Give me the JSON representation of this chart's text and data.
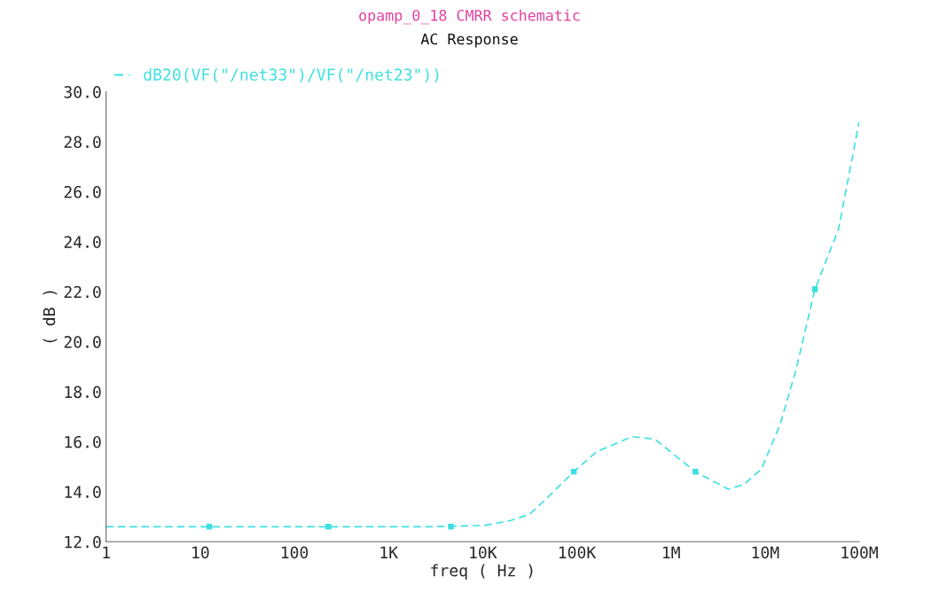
{
  "chart_data": {
    "type": "line",
    "title": "opamp_0_18 CMRR schematic",
    "subtitle": "AC Response",
    "xlabel": "freq ( Hz )",
    "ylabel": "( dB )",
    "log": "x",
    "grid": false,
    "legend": "top left",
    "line_style": "dashed",
    "xlim": [
      1,
      100000000
    ],
    "xticks": [
      1,
      10,
      100,
      {
        "value": 1000,
        "label": "1K"
      },
      {
        "value": 10000,
        "label": "10K"
      },
      {
        "value": 100000,
        "label": "100K"
      },
      {
        "value": 1000000,
        "label": "1M"
      },
      {
        "value": 10000000,
        "label": "10M"
      },
      {
        "value": 100000000,
        "label": "100M"
      }
    ],
    "ylim": [
      12.0,
      30.0
    ],
    "yticks": [
      {
        "value": 12,
        "label": "12.0"
      },
      {
        "value": 14,
        "label": "14.0"
      },
      {
        "value": 16,
        "label": "16.0"
      },
      {
        "value": 18,
        "label": "18.0"
      },
      {
        "value": 20,
        "label": "20.0"
      },
      {
        "value": 22,
        "label": "22.0"
      },
      {
        "value": 24,
        "label": "24.0"
      },
      {
        "value": 26,
        "label": "26.0"
      },
      {
        "value": 28,
        "label": "28.0"
      },
      {
        "value": 30,
        "label": "30.0"
      }
    ],
    "series": [
      {
        "name": "dB20(VF(\"/net33\")/VF(\"/net23\"))",
        "color": "#3ee0e0",
        "marker": "none",
        "x": [
          1,
          100,
          3000,
          10500,
          20000,
          31600,
          50000,
          93000,
          162000,
          389000,
          676000,
          1820000,
          4070000,
          6030000,
          9120000,
          14500000,
          21400000,
          33900000,
          60300000,
          100000000
        ],
        "values": [
          12.6,
          12.6,
          12.6,
          12.65,
          12.85,
          13.1,
          13.8,
          14.8,
          15.6,
          16.2,
          16.1,
          14.8,
          14.1,
          14.3,
          14.9,
          16.7,
          18.9,
          22.1,
          24.5,
          28.8
        ]
      },
      {
        "type": "scatter",
        "color": "#3ee0e0",
        "marker": "square",
        "x": [
          12.5,
          230,
          4600,
          93000,
          1820000,
          33900000
        ],
        "values": [
          12.6,
          12.6,
          12.6,
          14.8,
          14.8,
          22.1
        ]
      }
    ]
  }
}
